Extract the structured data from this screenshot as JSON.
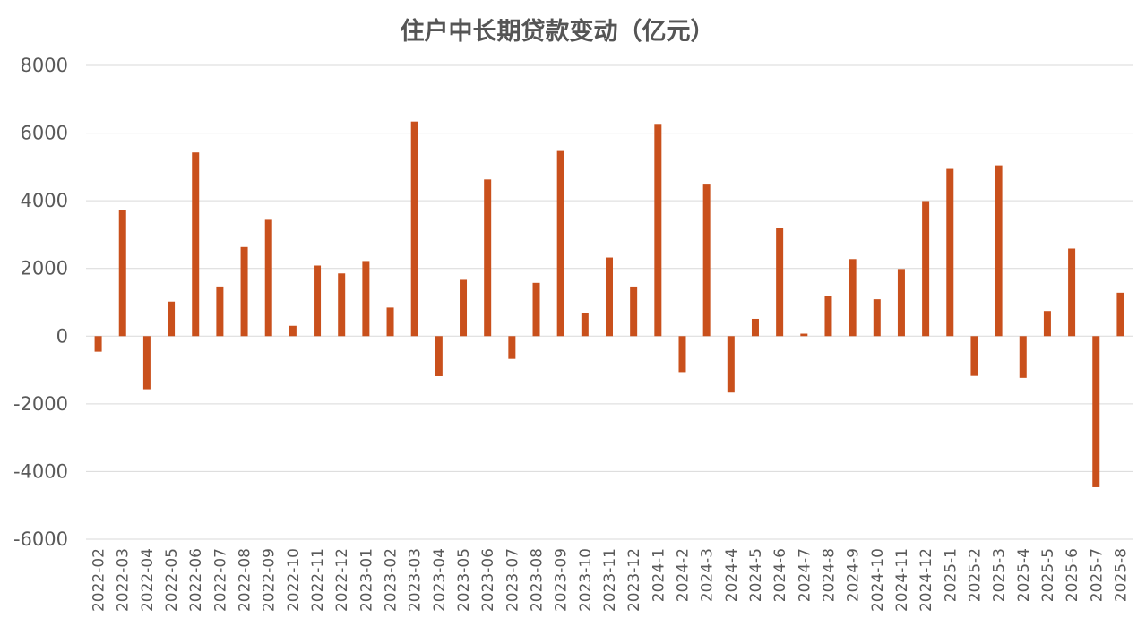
{
  "chart_data": {
    "type": "bar",
    "title": "住户中长期贷款变动（亿元）",
    "xlabel": "",
    "ylabel": "",
    "ylim": [
      -6000,
      8000
    ],
    "yticks": [
      8000,
      6000,
      4000,
      2000,
      0,
      -2000,
      -4000,
      -6000
    ],
    "ytick_labels": [
      "8000",
      "6000",
      "4000",
      "2000",
      "0",
      "-2000",
      "-4000",
      "-6000"
    ],
    "grid": true,
    "legend": "none",
    "bar_color": "#c9501c",
    "categories": [
      "2022-02",
      "2022-03",
      "2022-04",
      "2022-05",
      "2022-06",
      "2022-07",
      "2022-08",
      "2022-09",
      "2022-10",
      "2022-11",
      "2022-12",
      "2023-01",
      "2023-02",
      "2023-03",
      "2023-04",
      "2023-05",
      "2023-06",
      "2023-07",
      "2023-08",
      "2023-09",
      "2023-10",
      "2023-11",
      "2023-12",
      "2024-1",
      "2024-2",
      "2024-3",
      "2024-4",
      "2024-5",
      "2024-6",
      "2024-7",
      "2024-8",
      "2024-9",
      "2024-10",
      "2024-11",
      "2024-12",
      "2025-1",
      "2025-2",
      "2025-3",
      "2025-4",
      "2025-5",
      "2025-6",
      "2025-7",
      "2025-8"
    ],
    "values": [
      -459,
      3722,
      -1569,
      1020,
      5427,
      1466,
      2633,
      3437,
      305,
      2085,
      1853,
      2219,
      844,
      6341,
      -1183,
      1663,
      4630,
      -672,
      1574,
      5470,
      680,
      2322,
      1465,
      6272,
      -1062,
      4504,
      -1666,
      511,
      3207,
      73,
      1198,
      2276,
      1089,
      1983,
      3990,
      4942,
      -1175,
      5046,
      -1232,
      743,
      2588,
      -4464,
      1282
    ]
  }
}
